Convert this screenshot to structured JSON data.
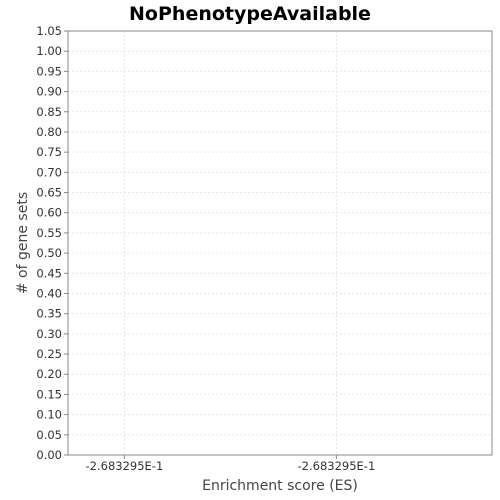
{
  "chart_data": {
    "type": "bar",
    "title": "NoPhenotypeAvailable",
    "xlabel": "Enrichment score (ES)",
    "ylabel": "# of gene sets",
    "x_tick_labels": [
      "-2.683295E-1",
      "-2.683295E-1"
    ],
    "ylim": [
      0,
      1.05
    ],
    "y_ticks": [
      "0.00",
      "0.05",
      "0.10",
      "0.15",
      "0.20",
      "0.25",
      "0.30",
      "0.35",
      "0.40",
      "0.45",
      "0.50",
      "0.55",
      "0.60",
      "0.65",
      "0.70",
      "0.75",
      "0.80",
      "0.85",
      "0.90",
      "0.95",
      "1.00",
      "1.05"
    ],
    "series": [],
    "grid": true,
    "legend": "none",
    "colors": {
      "grid": "#e6e6e6",
      "frame": "#888888"
    }
  }
}
